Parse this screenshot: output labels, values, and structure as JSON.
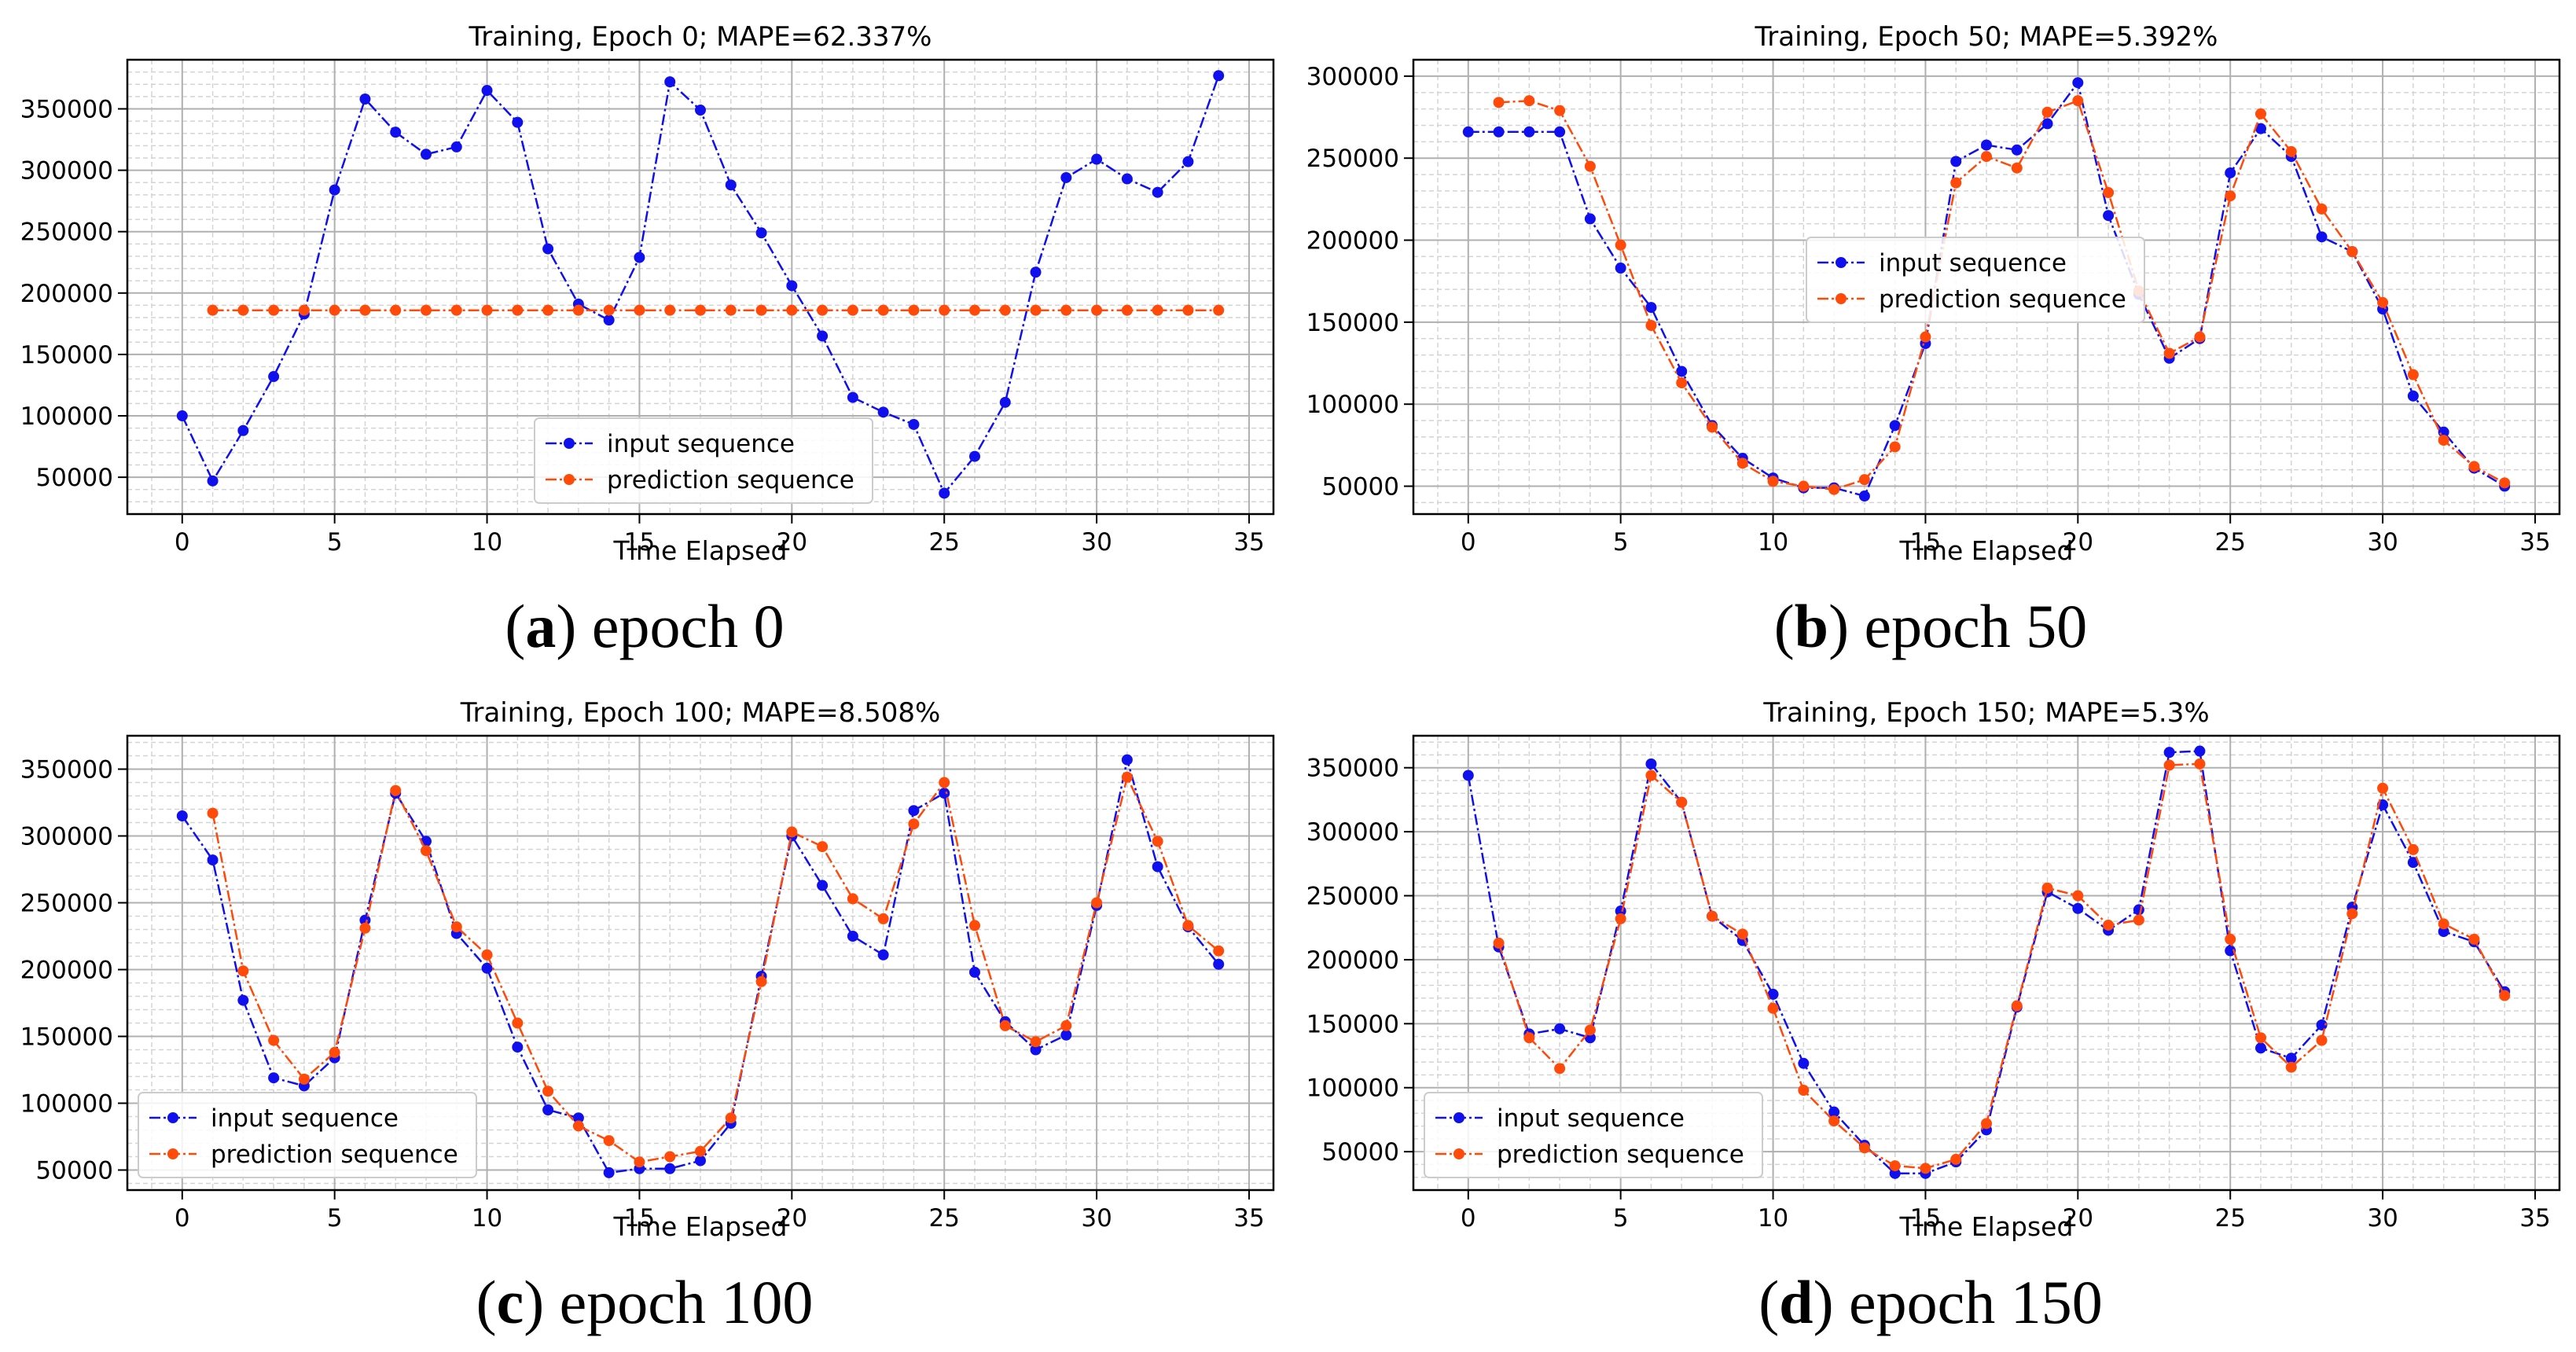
{
  "colors": {
    "input": "#1010ee",
    "prediction": "#ff4a0a"
  },
  "chart_data": [
    {
      "type": "line",
      "title": "Training, Epoch 0; MAPE=62.337%",
      "xlabel": "Time Elapsed",
      "ylabel": "",
      "xlim": [
        -1.8,
        35.8
      ],
      "ylim": [
        20000,
        390000
      ],
      "xticks": [
        0,
        5,
        10,
        15,
        20,
        25,
        30,
        35
      ],
      "xtick_labels": [
        "0",
        "5",
        "10",
        "15",
        "20",
        "25",
        "30",
        "35"
      ],
      "yticks": [
        50000,
        100000,
        150000,
        200000,
        250000,
        300000,
        350000
      ],
      "ytick_labels": [
        "50000",
        "100000",
        "150000",
        "200000",
        "250000",
        "300000",
        "350000"
      ],
      "legend": {
        "position": "lower-center",
        "labels": [
          "input sequence",
          "prediction sequence"
        ]
      },
      "caption": {
        "letter": "a",
        "text": " epoch 0"
      },
      "series": [
        {
          "name": "input sequence",
          "x": [
            0,
            1,
            2,
            3,
            4,
            5,
            6,
            7,
            8,
            9,
            10,
            11,
            12,
            13,
            14,
            15,
            16,
            17,
            18,
            19,
            20,
            21,
            22,
            23,
            24,
            25,
            26,
            27,
            28,
            29,
            30,
            31,
            32,
            33,
            34
          ],
          "values": [
            100000,
            47000,
            88000,
            132000,
            183000,
            284000,
            358000,
            331000,
            313000,
            319000,
            365000,
            339000,
            236000,
            191000,
            178000,
            229000,
            372000,
            349000,
            288000,
            249000,
            206000,
            165000,
            115000,
            103000,
            93000,
            37000,
            67000,
            111000,
            217000,
            294000,
            309000,
            293000,
            282000,
            307000,
            377000
          ]
        },
        {
          "name": "prediction sequence",
          "x": [
            1,
            2,
            3,
            4,
            5,
            6,
            7,
            8,
            9,
            10,
            11,
            12,
            13,
            14,
            15,
            16,
            17,
            18,
            19,
            20,
            21,
            22,
            23,
            24,
            25,
            26,
            27,
            28,
            29,
            30,
            31,
            32,
            33,
            34
          ],
          "values": [
            186000,
            186000,
            186000,
            186000,
            186000,
            186000,
            186000,
            186000,
            186000,
            186000,
            186000,
            186000,
            186000,
            186000,
            186000,
            186000,
            186000,
            186000,
            186000,
            186000,
            186000,
            186000,
            186000,
            186000,
            186000,
            186000,
            186000,
            186000,
            186000,
            186000,
            186000,
            186000,
            186000,
            186000
          ]
        }
      ]
    },
    {
      "type": "line",
      "title": "Training, Epoch 50; MAPE=5.392%",
      "xlabel": "Time Elapsed",
      "ylabel": "",
      "xlim": [
        -1.8,
        35.8
      ],
      "ylim": [
        33000,
        310000
      ],
      "xticks": [
        0,
        5,
        10,
        15,
        20,
        25,
        30,
        35
      ],
      "xtick_labels": [
        "0",
        "5",
        "10",
        "15",
        "20",
        "25",
        "30",
        "35"
      ],
      "yticks": [
        50000,
        100000,
        150000,
        200000,
        250000,
        300000
      ],
      "ytick_labels": [
        "50000",
        "100000",
        "150000",
        "200000",
        "250000",
        "300000"
      ],
      "legend": {
        "position": "center",
        "labels": [
          "input sequence",
          "prediction sequence"
        ]
      },
      "caption": {
        "letter": "b",
        "text": " epoch 50"
      },
      "series": [
        {
          "name": "input sequence",
          "x": [
            0,
            1,
            2,
            3,
            4,
            5,
            6,
            7,
            8,
            9,
            10,
            11,
            12,
            13,
            14,
            15,
            16,
            17,
            18,
            19,
            20,
            21,
            22,
            23,
            24,
            25,
            26,
            27,
            28,
            29,
            30,
            31,
            32,
            33,
            34
          ],
          "values": [
            266000,
            266000,
            266000,
            266000,
            213000,
            183000,
            159000,
            120000,
            87000,
            67000,
            55000,
            49000,
            49000,
            44000,
            87000,
            137000,
            248000,
            258000,
            255000,
            271000,
            296000,
            215000,
            167000,
            128000,
            140000,
            241000,
            268000,
            251000,
            202000,
            193000,
            158000,
            105000,
            83000,
            61000,
            50000
          ]
        },
        {
          "name": "prediction sequence",
          "x": [
            1,
            2,
            3,
            4,
            5,
            6,
            7,
            8,
            9,
            10,
            11,
            12,
            13,
            14,
            15,
            16,
            17,
            18,
            19,
            20,
            21,
            22,
            23,
            24,
            25,
            26,
            27,
            28,
            29,
            30,
            31,
            32,
            33,
            34
          ],
          "values": [
            284000,
            285000,
            279000,
            245000,
            197000,
            148000,
            113000,
            86000,
            64000,
            53000,
            50000,
            48000,
            54000,
            74000,
            141000,
            235000,
            251000,
            244000,
            278000,
            285000,
            229000,
            169000,
            131000,
            141000,
            227000,
            277000,
            254000,
            219000,
            193000,
            162000,
            118000,
            78000,
            62000,
            52000
          ]
        }
      ]
    },
    {
      "type": "line",
      "title": "Training, Epoch 100; MAPE=8.508%",
      "xlabel": "Time Elapsed",
      "ylabel": "",
      "xlim": [
        -1.8,
        35.8
      ],
      "ylim": [
        35000,
        375000
      ],
      "xticks": [
        0,
        5,
        10,
        15,
        20,
        25,
        30,
        35
      ],
      "xtick_labels": [
        "0",
        "5",
        "10",
        "15",
        "20",
        "25",
        "30",
        "35"
      ],
      "yticks": [
        50000,
        100000,
        150000,
        200000,
        250000,
        300000,
        350000
      ],
      "ytick_labels": [
        "50000",
        "100000",
        "150000",
        "200000",
        "250000",
        "300000",
        "350000"
      ],
      "legend": {
        "position": "lower-left",
        "labels": [
          "input sequence",
          "prediction sequence"
        ]
      },
      "caption": {
        "letter": "c",
        "text": " epoch 100"
      },
      "series": [
        {
          "name": "input sequence",
          "x": [
            0,
            1,
            2,
            3,
            4,
            5,
            6,
            7,
            8,
            9,
            10,
            11,
            12,
            13,
            14,
            15,
            16,
            17,
            18,
            19,
            20,
            21,
            22,
            23,
            24,
            25,
            26,
            27,
            28,
            29,
            30,
            31,
            32,
            33,
            34
          ],
          "values": [
            315000,
            282000,
            177000,
            119000,
            113000,
            134000,
            237000,
            332000,
            296000,
            227000,
            201000,
            142000,
            95000,
            89000,
            48000,
            51000,
            51000,
            57000,
            85000,
            195000,
            300000,
            263000,
            225000,
            211000,
            319000,
            332000,
            198000,
            161000,
            140000,
            151000,
            248000,
            357000,
            277000,
            232000,
            204000
          ]
        },
        {
          "name": "prediction sequence",
          "x": [
            1,
            2,
            3,
            4,
            5,
            6,
            7,
            8,
            9,
            10,
            11,
            12,
            13,
            14,
            15,
            16,
            17,
            18,
            19,
            20,
            21,
            22,
            23,
            24,
            25,
            26,
            27,
            28,
            29,
            30,
            31,
            32,
            33,
            34
          ],
          "values": [
            317000,
            199000,
            147000,
            118000,
            138000,
            231000,
            334000,
            289000,
            232000,
            211000,
            160000,
            109000,
            83000,
            72000,
            56000,
            60000,
            64000,
            89000,
            191000,
            303000,
            292000,
            253000,
            238000,
            309000,
            340000,
            233000,
            158000,
            146000,
            158000,
            250000,
            344000,
            296000,
            233000,
            214000
          ]
        }
      ]
    },
    {
      "type": "line",
      "title": "Training, Epoch 150; MAPE=5.3%",
      "xlabel": "Time Elapsed",
      "ylabel": "",
      "xlim": [
        -1.8,
        35.8
      ],
      "ylim": [
        20000,
        375000
      ],
      "xticks": [
        0,
        5,
        10,
        15,
        20,
        25,
        30,
        35
      ],
      "xtick_labels": [
        "0",
        "5",
        "10",
        "15",
        "20",
        "25",
        "30",
        "35"
      ],
      "yticks": [
        50000,
        100000,
        150000,
        200000,
        250000,
        300000,
        350000
      ],
      "ytick_labels": [
        "50000",
        "100000",
        "150000",
        "200000",
        "250000",
        "300000",
        "350000"
      ],
      "legend": {
        "position": "lower-left",
        "labels": [
          "input sequence",
          "prediction sequence"
        ]
      },
      "caption": {
        "letter": "d",
        "text": " epoch 150"
      },
      "series": [
        {
          "name": "input sequence",
          "x": [
            0,
            1,
            2,
            3,
            4,
            5,
            6,
            7,
            8,
            9,
            10,
            11,
            12,
            13,
            14,
            15,
            16,
            17,
            18,
            19,
            20,
            21,
            22,
            23,
            24,
            25,
            26,
            27,
            28,
            29,
            30,
            31,
            32,
            33,
            34
          ],
          "values": [
            344000,
            210000,
            142000,
            146000,
            139000,
            238000,
            353000,
            323000,
            234000,
            215000,
            173000,
            119000,
            81000,
            55000,
            33000,
            33000,
            42000,
            67000,
            163000,
            253000,
            240000,
            223000,
            239000,
            362000,
            363000,
            207000,
            131000,
            123000,
            149000,
            241000,
            321000,
            276000,
            222000,
            214000,
            175000
          ]
        },
        {
          "name": "prediction sequence",
          "x": [
            1,
            2,
            3,
            4,
            5,
            6,
            7,
            8,
            9,
            10,
            11,
            12,
            13,
            14,
            15,
            16,
            17,
            18,
            19,
            20,
            21,
            22,
            23,
            24,
            25,
            26,
            27,
            28,
            29,
            30,
            31,
            32,
            33,
            34
          ],
          "values": [
            213000,
            139000,
            115000,
            145000,
            232000,
            344000,
            323000,
            234000,
            220000,
            162000,
            98000,
            74000,
            53000,
            39000,
            37000,
            44000,
            72000,
            164000,
            256000,
            250000,
            227000,
            231000,
            352000,
            353000,
            216000,
            139000,
            116000,
            137000,
            236000,
            334000,
            286000,
            228000,
            216000,
            172000
          ]
        }
      ]
    }
  ]
}
